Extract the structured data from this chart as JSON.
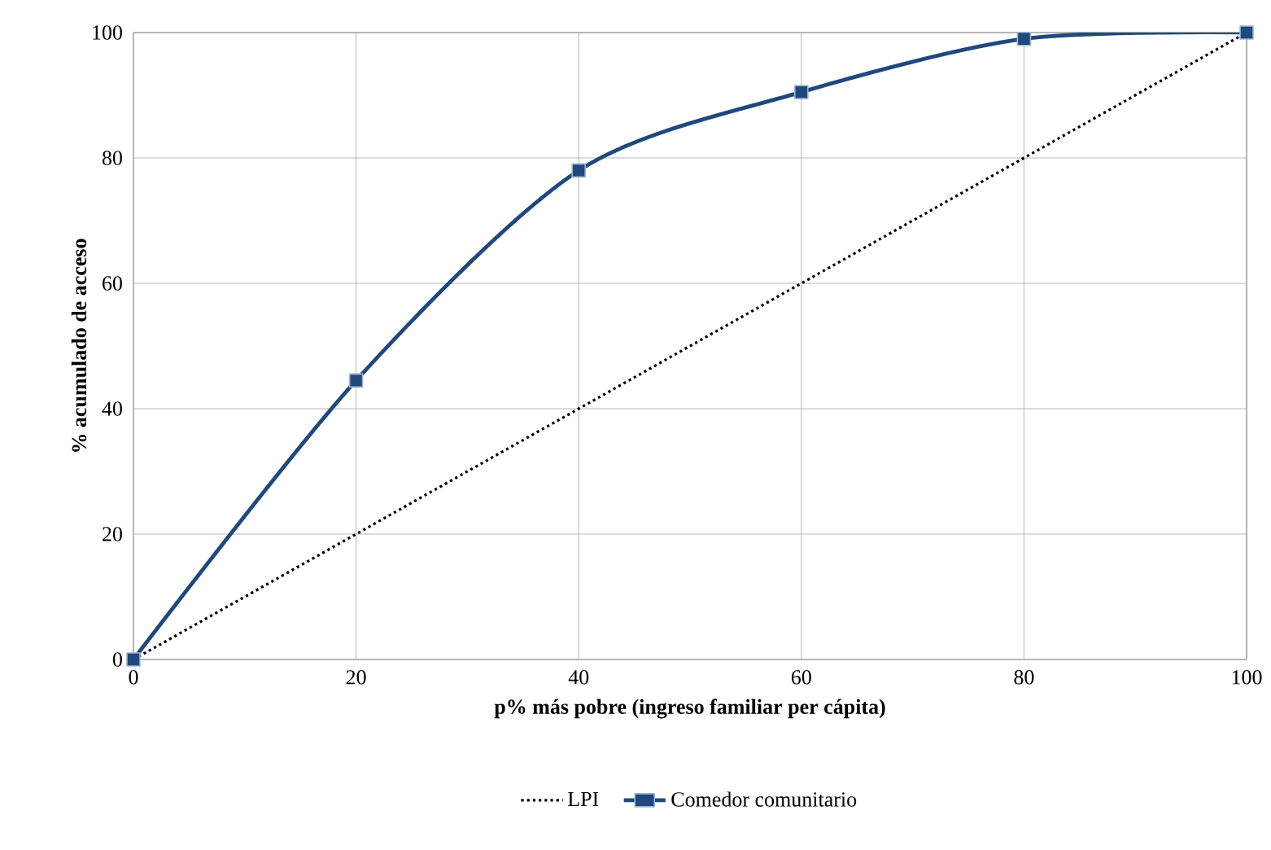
{
  "chart_data": {
    "type": "line",
    "xlabel": "p% más pobre (ingreso familiar per cápita)",
    "ylabel": "% acumulado de acceso",
    "x": [
      0,
      20,
      40,
      60,
      80,
      100
    ],
    "series": [
      {
        "name": "LPI",
        "color": "#000000",
        "line_style": "dotted",
        "marker": "none",
        "values": [
          0,
          20,
          40,
          60,
          80,
          100
        ]
      },
      {
        "name": "Comedor comunitario",
        "color": "#1f497d",
        "line_style": "solid",
        "marker": "square",
        "values": [
          0,
          44.5,
          78,
          90.5,
          99,
          100
        ]
      }
    ],
    "xlim": [
      0,
      100
    ],
    "ylim": [
      0,
      100
    ],
    "xticks": [
      0,
      20,
      40,
      60,
      80,
      100
    ],
    "yticks": [
      0,
      20,
      40,
      60,
      80,
      100
    ],
    "grid": true,
    "legend": "bottom"
  }
}
